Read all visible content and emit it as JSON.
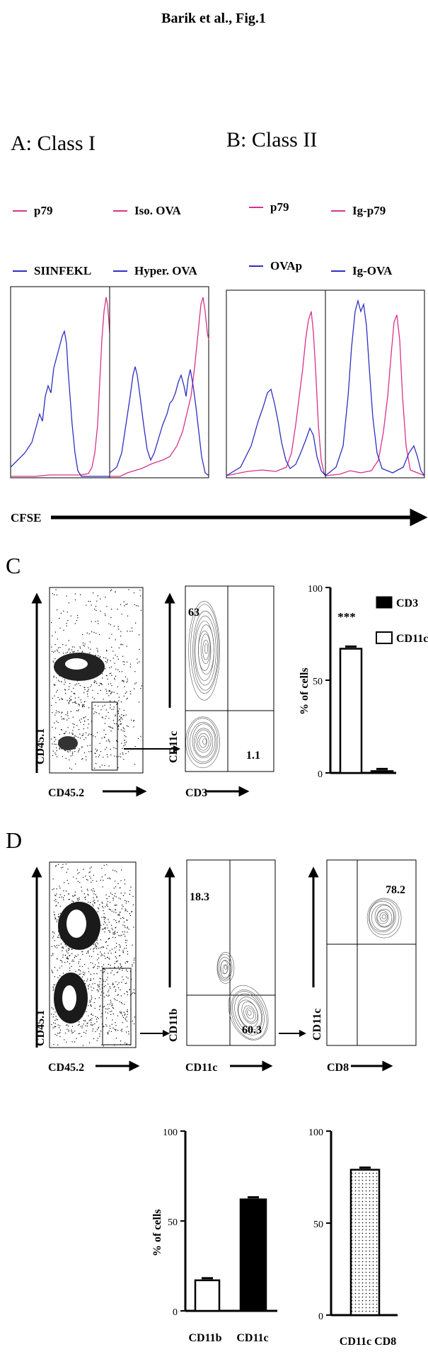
{
  "title": "Barik et al., Fig.1",
  "panel_a": {
    "label": "A: Class I",
    "left": {
      "legend": [
        {
          "text": "p79",
          "color": "#d6338a"
        },
        {
          "text": "SIINFEKL",
          "color": "#2f2fc0"
        }
      ]
    },
    "right": {
      "legend": [
        {
          "text": "Iso. OVA",
          "color": "#d6338a"
        },
        {
          "text": "Hyper. OVA",
          "color": "#2f2fc0"
        }
      ]
    }
  },
  "panel_b": {
    "label": "B: Class II",
    "left": {
      "legend": [
        {
          "text": "p79",
          "color": "#d6338a"
        },
        {
          "text": "OVAp",
          "color": "#2f2fc0"
        }
      ]
    },
    "right": {
      "legend": [
        {
          "text": "Ig-p79",
          "color": "#d6338a"
        },
        {
          "text": "Ig-OVA",
          "color": "#2f2fc0"
        }
      ]
    }
  },
  "cfse_label": "CFSE",
  "panel_c": {
    "label": "C",
    "dot_x": "CD45.2",
    "dot_y": "CD45.1",
    "contour_x": "CD3",
    "contour_y": "CD11c",
    "q_ul": "63",
    "q_lr": "1.1",
    "bar": {
      "ylabel": "% of cells",
      "ticks": [
        "0",
        "50",
        "100"
      ],
      "legend": [
        {
          "text": "CD3",
          "fill": "#000"
        },
        {
          "text": "CD11c",
          "fill": "#fff"
        }
      ],
      "sig": "***"
    }
  },
  "panel_d": {
    "label": "D",
    "dot_x": "CD45.2",
    "dot_y": "CD45.1",
    "c1_x": "CD11c",
    "c1_y": "CD11b",
    "c1_q_ul": "18.3",
    "c1_q_lr": "60.3",
    "c2_x": "CD8",
    "c2_y": "CD11c",
    "c2_q_ur": "78.2",
    "bar1": {
      "ylabel": "% of cells",
      "ticks": [
        "0",
        "50",
        "100"
      ],
      "cats": [
        "CD11b",
        "CD11c"
      ]
    },
    "bar2": {
      "ticks": [
        "0",
        "50",
        "100"
      ],
      "cats": [
        "CD11c CD8"
      ]
    }
  },
  "chart_data": [
    {
      "type": "bar",
      "categories": [
        "CD11c",
        "CD3"
      ],
      "values": [
        67,
        1
      ],
      "ylim": [
        0,
        100
      ],
      "ylabel": "% of cells",
      "series_colors": [
        "#fff",
        "#000"
      ],
      "annotations": [
        "***"
      ]
    },
    {
      "type": "bar",
      "categories": [
        "CD11b",
        "CD11c"
      ],
      "values": [
        17,
        62
      ],
      "ylim": [
        0,
        100
      ],
      "ylabel": "% of cells"
    },
    {
      "type": "bar",
      "categories": [
        "CD11c CD8"
      ],
      "values": [
        79
      ],
      "ylim": [
        0,
        100
      ]
    }
  ]
}
